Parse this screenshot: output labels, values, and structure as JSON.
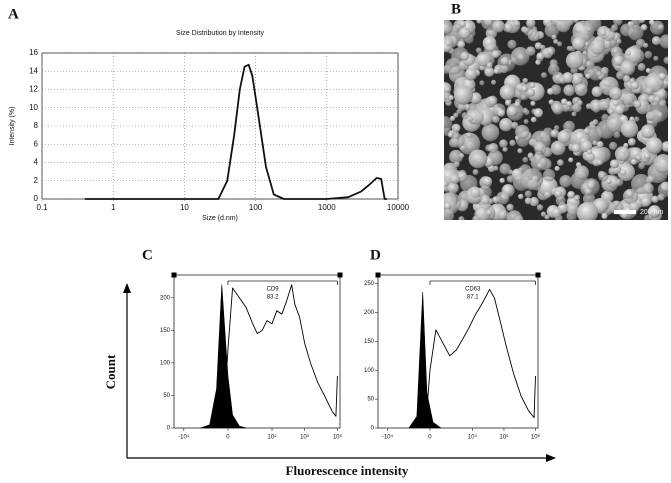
{
  "panel_labels": [
    "A",
    "B",
    "C",
    "D"
  ],
  "image": {
    "scale_bar": "200 nm"
  },
  "shared_axes": {
    "y_label": "Count",
    "x_label": "Fluorescence intensity"
  },
  "chart_data": [
    {
      "type": "line",
      "title": "Size Distribution by Intensity",
      "xlabel": "Size (d.nm)",
      "ylabel": "Intensity (%)",
      "xscale": "log",
      "grid": true,
      "xlim": [
        0.1,
        10000
      ],
      "ylim": [
        0,
        16
      ],
      "xticks": [
        0.1,
        1,
        10,
        100,
        1000,
        10000
      ],
      "yticks": [
        0,
        2,
        4,
        6,
        8,
        10,
        12,
        14,
        16
      ],
      "series": [
        {
          "color": "#111111",
          "x": [
            0.4,
            10,
            30,
            40,
            50,
            60,
            70,
            80,
            90,
            110,
            140,
            180,
            250,
            1000,
            2000,
            3000,
            4000,
            5000,
            5800,
            6500,
            7000
          ],
          "values": [
            0,
            0,
            0,
            2,
            7,
            12,
            14.5,
            14.7,
            13.5,
            9,
            3.5,
            0.5,
            0,
            0,
            0.2,
            0.8,
            1.6,
            2.3,
            2.2,
            0,
            0
          ]
        }
      ]
    },
    {
      "type": "line",
      "xscale": "biexponential",
      "xlim": [
        -20000,
        1200000
      ],
      "ylim": [
        0,
        235
      ],
      "xticks": [
        {
          "value": -10000,
          "label": "-10⁴"
        },
        0,
        {
          "value": 10000,
          "label": "10⁴"
        },
        {
          "value": 100000,
          "label": "10⁵"
        },
        {
          "value": 1000000,
          "label": "10⁶"
        }
      ],
      "yticks": [
        0,
        50,
        100,
        150,
        200
      ],
      "gate": {
        "label": "CD9",
        "value": 83.2,
        "range": [
          0,
          1000000
        ]
      },
      "series": [
        {
          "color": "#000000",
          "fill": true,
          "x": [
            -3000,
            -1500,
            -800,
            -400,
            0,
            300,
            800,
            1500
          ],
          "values": [
            0,
            5,
            60,
            220,
            80,
            20,
            3,
            0
          ]
        },
        {
          "color": "#000000",
          "fill": false,
          "x": [
            -300,
            0,
            300,
            800,
            1500,
            2500,
            3500,
            5000,
            7000,
            10000,
            14000,
            20000,
            28000,
            40000,
            50000,
            70000,
            100000,
            150000,
            250000,
            400000,
            700000,
            900000,
            1000000
          ],
          "values": [
            0,
            120,
            215,
            200,
            185,
            160,
            145,
            150,
            165,
            160,
            180,
            175,
            195,
            220,
            190,
            170,
            130,
            100,
            70,
            50,
            25,
            18,
            80
          ]
        }
      ]
    },
    {
      "type": "line",
      "xscale": "biexponential",
      "xlim": [
        -20000,
        1200000
      ],
      "ylim": [
        0,
        265
      ],
      "xticks": [
        {
          "value": -10000,
          "label": "-10⁴"
        },
        0,
        {
          "value": 10000,
          "label": "10⁴"
        },
        {
          "value": 100000,
          "label": "10⁵"
        },
        {
          "value": 1000000,
          "label": "10⁶"
        }
      ],
      "yticks": [
        0,
        50,
        100,
        150,
        200,
        250
      ],
      "gate": {
        "label": "CD63",
        "value": 87.1,
        "range": [
          0,
          1000000
        ]
      },
      "series": [
        {
          "color": "#000000",
          "fill": true,
          "x": [
            -2000,
            -1000,
            -500,
            -200,
            200,
            800
          ],
          "values": [
            0,
            20,
            235,
            60,
            10,
            0
          ]
        },
        {
          "color": "#000000",
          "fill": false,
          "x": [
            -300,
            0,
            400,
            900,
            1800,
            3000,
            5000,
            8000,
            12000,
            20000,
            35000,
            50000,
            80000,
            120000,
            200000,
            350000,
            600000,
            900000,
            1000000
          ],
          "values": [
            0,
            100,
            170,
            150,
            125,
            135,
            155,
            175,
            195,
            215,
            240,
            225,
            180,
            140,
            95,
            55,
            30,
            18,
            90
          ]
        }
      ]
    }
  ]
}
